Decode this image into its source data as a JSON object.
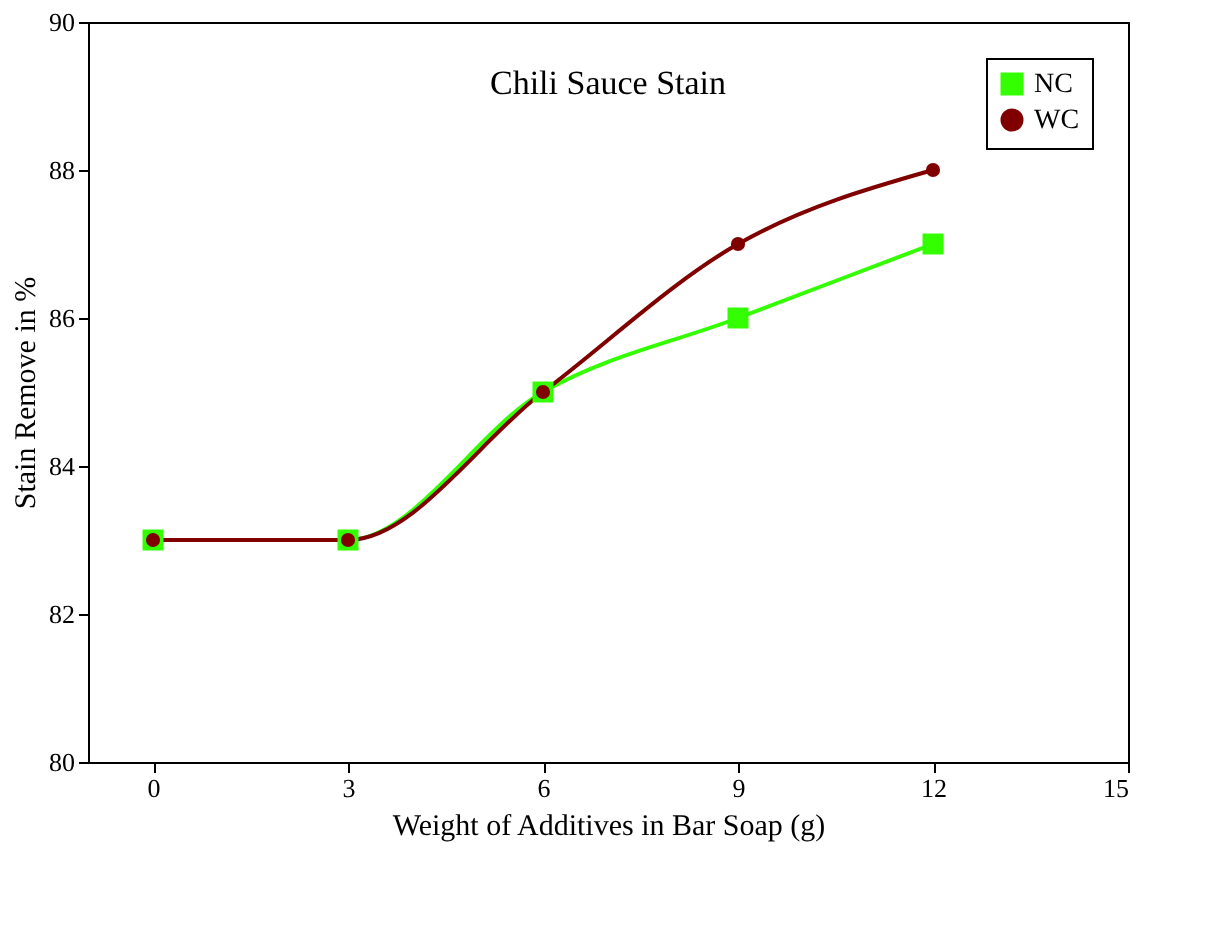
{
  "chart_data": {
    "type": "line",
    "title": "Chili Sauce Stain",
    "xlabel": "Weight of Additives in Bar Soap (g)",
    "ylabel": "Stain Remove in %",
    "x": [
      0,
      3,
      6,
      9,
      12
    ],
    "series": [
      {
        "name": "NC",
        "color": "#33ff00",
        "marker": "square",
        "values": [
          83,
          83,
          85,
          86,
          87
        ]
      },
      {
        "name": "WC",
        "color": "#800000",
        "marker": "circle",
        "values": [
          83,
          83,
          85,
          87,
          88
        ]
      }
    ],
    "xlim": [
      -1,
      15
    ],
    "xticks": [
      0,
      3,
      6,
      9,
      12,
      15
    ],
    "ylim": [
      80,
      90
    ],
    "yticks": [
      80,
      82,
      84,
      86,
      88,
      90
    ],
    "grid": false,
    "legend": "top right"
  }
}
